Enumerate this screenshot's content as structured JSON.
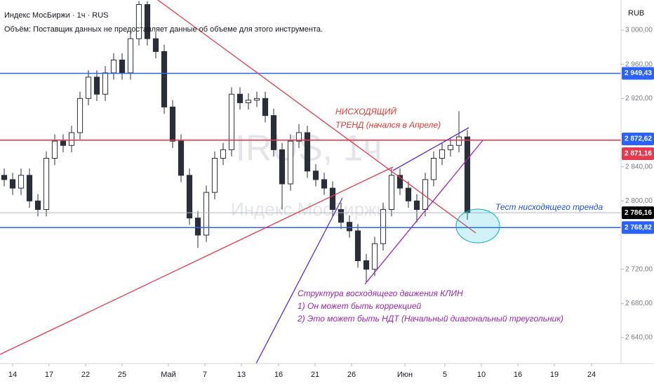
{
  "header": {
    "symbol": "Индекс МосБиржи · 1ч · RUS",
    "volume_note": "Объём: Поставщик данных не предоставляет данные об объеме для этого инструмента.",
    "currency": "RUB",
    "watermark_ticker": "IRUS, 1ч",
    "watermark_name": "Индекс МосБиржи"
  },
  "chart_data": {
    "type": "candlestick",
    "x": [
      0,
      1,
      2,
      3,
      4,
      5,
      6,
      7,
      8,
      9,
      10,
      11,
      12,
      13,
      14,
      15,
      16,
      17,
      18,
      19,
      20,
      21,
      22,
      23,
      24,
      25,
      26,
      27,
      28,
      29,
      30,
      31,
      32,
      33,
      34,
      35,
      36,
      37,
      38,
      39,
      40,
      41,
      42,
      43,
      44,
      45,
      46,
      47,
      48,
      49,
      50,
      51,
      52,
      53,
      54,
      55
    ],
    "open": [
      2830,
      2825,
      2815,
      2830,
      2800,
      2790,
      2850,
      2870,
      2865,
      2880,
      2920,
      2945,
      2925,
      2950,
      2965,
      2950,
      2990,
      3030,
      2990,
      2975,
      2910,
      2870,
      2830,
      2780,
      2760,
      2810,
      2850,
      2860,
      2925,
      2915,
      2918,
      2920,
      2900,
      2860,
      2820,
      2870,
      2880,
      2835,
      2825,
      2815,
      2790,
      2775,
      2765,
      2730,
      2720,
      2750,
      2790,
      2830,
      2815,
      2800,
      2790,
      2825,
      2850,
      2860,
      2865,
      2875
    ],
    "high": [
      2838,
      2833,
      2838,
      2838,
      2808,
      2858,
      2878,
      2878,
      2888,
      2928,
      2953,
      2953,
      2958,
      2973,
      2973,
      2998,
      3034,
      3034,
      2998,
      2983,
      2918,
      2878,
      2838,
      2788,
      2818,
      2858,
      2868,
      2933,
      2933,
      2926,
      2928,
      2928,
      2908,
      2868,
      2878,
      2890,
      2888,
      2843,
      2833,
      2823,
      2798,
      2783,
      2773,
      2738,
      2758,
      2798,
      2838,
      2838,
      2823,
      2808,
      2833,
      2858,
      2868,
      2873,
      2905,
      2883
    ],
    "low": [
      2817,
      2807,
      2807,
      2792,
      2782,
      2782,
      2842,
      2857,
      2857,
      2872,
      2912,
      2917,
      2917,
      2942,
      2942,
      2942,
      2982,
      2982,
      2967,
      2902,
      2862,
      2822,
      2772,
      2745,
      2752,
      2802,
      2842,
      2852,
      2907,
      2907,
      2910,
      2892,
      2852,
      2790,
      2812,
      2862,
      2827,
      2817,
      2807,
      2782,
      2767,
      2757,
      2722,
      2705,
      2712,
      2742,
      2782,
      2807,
      2792,
      2775,
      2782,
      2817,
      2842,
      2852,
      2857,
      2778
    ],
    "close": [
      2825,
      2815,
      2830,
      2800,
      2790,
      2850,
      2870,
      2865,
      2880,
      2920,
      2945,
      2925,
      2950,
      2965,
      2950,
      2990,
      3030,
      2990,
      2975,
      2910,
      2870,
      2830,
      2780,
      2760,
      2810,
      2850,
      2860,
      2925,
      2915,
      2918,
      2920,
      2900,
      2860,
      2820,
      2870,
      2880,
      2835,
      2825,
      2815,
      2790,
      2775,
      2765,
      2730,
      2720,
      2750,
      2790,
      2830,
      2815,
      2800,
      2790,
      2825,
      2850,
      2860,
      2865,
      2875,
      2786
    ],
    "up_color": "#ffffff",
    "down_color": "#2a2e39",
    "xlim": [
      -0.5,
      73.25
    ],
    "ylim": [
      2609.6,
      3035.3
    ],
    "xticks": [
      {
        "value": 1,
        "label": "14"
      },
      {
        "value": 5.33,
        "label": "17"
      },
      {
        "value": 9.67,
        "label": "22"
      },
      {
        "value": 14,
        "label": "25"
      },
      {
        "value": 19.5,
        "label": "Май"
      },
      {
        "value": 23.83,
        "label": "7"
      },
      {
        "value": 28.17,
        "label": "13"
      },
      {
        "value": 32.58,
        "label": "16"
      },
      {
        "value": 36.92,
        "label": "21"
      },
      {
        "value": 41.25,
        "label": "26"
      },
      {
        "value": 47.58,
        "label": "Июн"
      },
      {
        "value": 52.33,
        "label": "5"
      },
      {
        "value": 56.67,
        "label": "10"
      },
      {
        "value": 61,
        "label": "16"
      },
      {
        "value": 65.33,
        "label": "19"
      },
      {
        "value": 69.75,
        "label": "24"
      }
    ],
    "yticks": [
      {
        "value": 3000,
        "label": "3 000,00"
      },
      {
        "value": 2960,
        "label": "2 960,00"
      },
      {
        "value": 2920,
        "label": "2 920,00"
      },
      {
        "value": 2840,
        "label": "2 840,00"
      },
      {
        "value": 2800,
        "label": "2 800,00"
      },
      {
        "value": 2720,
        "label": "2 720,00"
      },
      {
        "value": 2680,
        "label": "2 680,00"
      },
      {
        "value": 2640,
        "label": "2 640,00"
      }
    ],
    "price_lines": [
      {
        "value": 2949.43,
        "label": "2 949,43",
        "color": "#2962ff",
        "line": true
      },
      {
        "value": 2872.62,
        "label": "2 872,62",
        "color": "#2962ff",
        "line": false
      },
      {
        "value": 2871.16,
        "label": "2 871,16",
        "color": "#e53950",
        "line": true
      },
      {
        "value": 2786.16,
        "label": "2 786,16",
        "color": "#000000",
        "line": true
      },
      {
        "value": 2768.82,
        "label": "2 768,82",
        "color": "#2962ff",
        "line": true
      }
    ],
    "annotations": {
      "trend_1": "НИСХОДЯЩИЙ",
      "trend_2": "ТРЕНД (начался в Апреле)",
      "test": "Тест нисходящего тренда",
      "wedge_1": "Структура восходящего движения КЛИН",
      "wedge_2": "1) Он может быть коррекцией",
      "wedge_3": "2) Это может быть НДТ (Начальный диагональный треугольник)"
    }
  }
}
